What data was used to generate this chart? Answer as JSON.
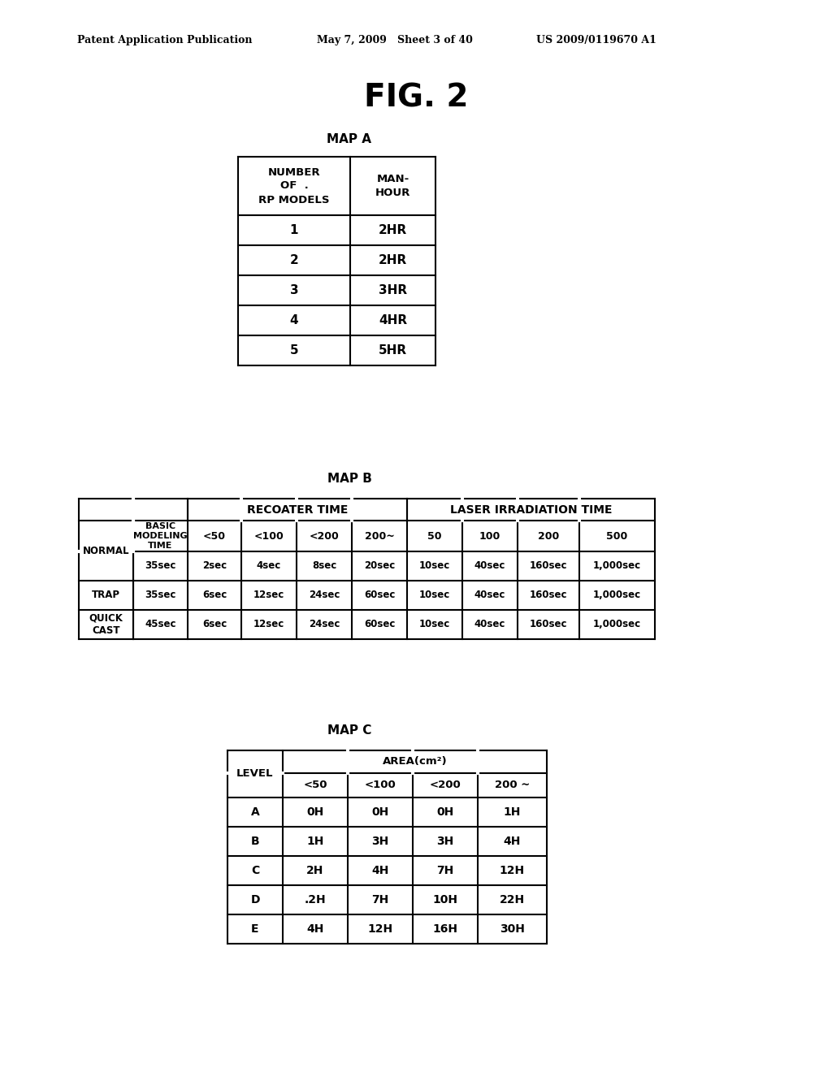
{
  "header_left": "Patent Application Publication",
  "header_mid": "May 7, 2009   Sheet 3 of 40",
  "header_right": "US 2009/0119670 A1",
  "fig_title": "FIG. 2",
  "map_a_title": "MAP A",
  "map_a_col0_header": "NUMBER\nOF  .\nRP MODELS",
  "map_a_col1_header": "MAN-\nHOUR",
  "map_a_rows": [
    [
      "1",
      "2HR"
    ],
    [
      "2",
      "2HR"
    ],
    [
      "3",
      "3HR"
    ],
    [
      "4",
      "4HR"
    ],
    [
      "5",
      "5HR"
    ]
  ],
  "map_b_title": "MAP B",
  "map_b_rows": [
    [
      "NORMAL",
      "35sec",
      "2sec",
      "4sec",
      "8sec",
      "20sec",
      "10sec",
      "40sec",
      "160sec",
      "1,000sec"
    ],
    [
      "TRAP",
      "35sec",
      "6sec",
      "12sec",
      "24sec",
      "60sec",
      "10sec",
      "40sec",
      "160sec",
      "1,000sec"
    ],
    [
      "QUICK\nCAST",
      "45sec",
      "6sec",
      "12sec",
      "24sec",
      "60sec",
      "10sec",
      "40sec",
      "160sec",
      "1,000sec"
    ]
  ],
  "map_c_title": "MAP C",
  "map_c_rows": [
    [
      "A",
      "0H",
      "0H",
      "0H",
      "1H"
    ],
    [
      "B",
      "1H",
      "3H",
      "3H",
      "4H"
    ],
    [
      "C",
      "2H",
      "4H",
      "7H",
      "12H"
    ],
    [
      "D",
      ".2H",
      "7H",
      "10H",
      "22H"
    ],
    [
      "E",
      "4H",
      "12H",
      "16H",
      "30H"
    ]
  ],
  "bg_color": "#ffffff",
  "text_color": "#000000",
  "line_color": "#000000"
}
